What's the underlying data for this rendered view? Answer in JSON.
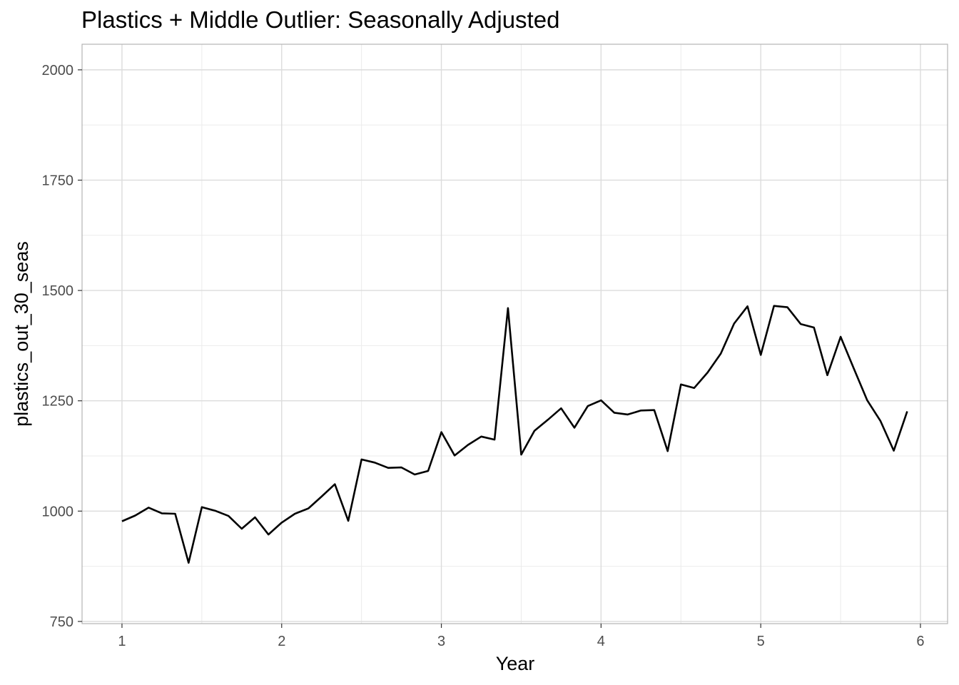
{
  "chart_data": {
    "type": "line",
    "title": "Plastics + Middle Outlier: Seasonally Adjusted",
    "xlabel": "Year",
    "ylabel": "plastics_out_30_seas",
    "xlim": [
      0.75,
      6.17
    ],
    "ylim": [
      745,
      2058
    ],
    "x_ticks": [
      1,
      2,
      3,
      4,
      5,
      6
    ],
    "x_tick_labels": [
      "1",
      "2",
      "3",
      "4",
      "5",
      "6"
    ],
    "y_ticks": [
      750,
      1000,
      1250,
      1500,
      1750,
      2000
    ],
    "y_tick_labels": [
      "750",
      "1000",
      "1250",
      "1500",
      "1750",
      "2000"
    ],
    "grid": true,
    "legend": "none",
    "line_color": "#000000",
    "series": [
      {
        "x": [
          1.0,
          1.083,
          1.167,
          1.25,
          1.333,
          1.417,
          1.5,
          1.583,
          1.667,
          1.75,
          1.833,
          1.917,
          2.0,
          2.083,
          2.167,
          2.25,
          2.333,
          2.417,
          2.5,
          2.583,
          2.667,
          2.75,
          2.833,
          2.917,
          3.0,
          3.083,
          3.167,
          3.25,
          3.333,
          3.417,
          3.5,
          3.583,
          3.667,
          3.75,
          3.833,
          3.917,
          4.0,
          4.083,
          4.167,
          4.25,
          4.333,
          4.417,
          4.5,
          4.583,
          4.667,
          4.75,
          4.833,
          4.917,
          5.0,
          5.083,
          5.167,
          5.25,
          5.333,
          5.417,
          5.5,
          5.583,
          5.667,
          5.75,
          5.833,
          5.917
        ],
        "values": [
          977,
          990,
          1008,
          995,
          994,
          883,
          1009,
          1001,
          989,
          960,
          986,
          947,
          974,
          994,
          1006,
          1033,
          1061,
          978,
          1117,
          1110,
          1098,
          1099,
          1083,
          1091,
          1179,
          1126,
          1150,
          1169,
          1162,
          1460,
          1128,
          1182,
          1207,
          1233,
          1189,
          1238,
          1251,
          1223,
          1219,
          1228,
          1229,
          1136,
          1287,
          1279,
          1314,
          1357,
          1425,
          1464,
          1354,
          1465,
          1462,
          1424,
          1416,
          1308,
          1395,
          1323,
          1251,
          1204,
          1137,
          1226
        ]
      }
    ]
  }
}
